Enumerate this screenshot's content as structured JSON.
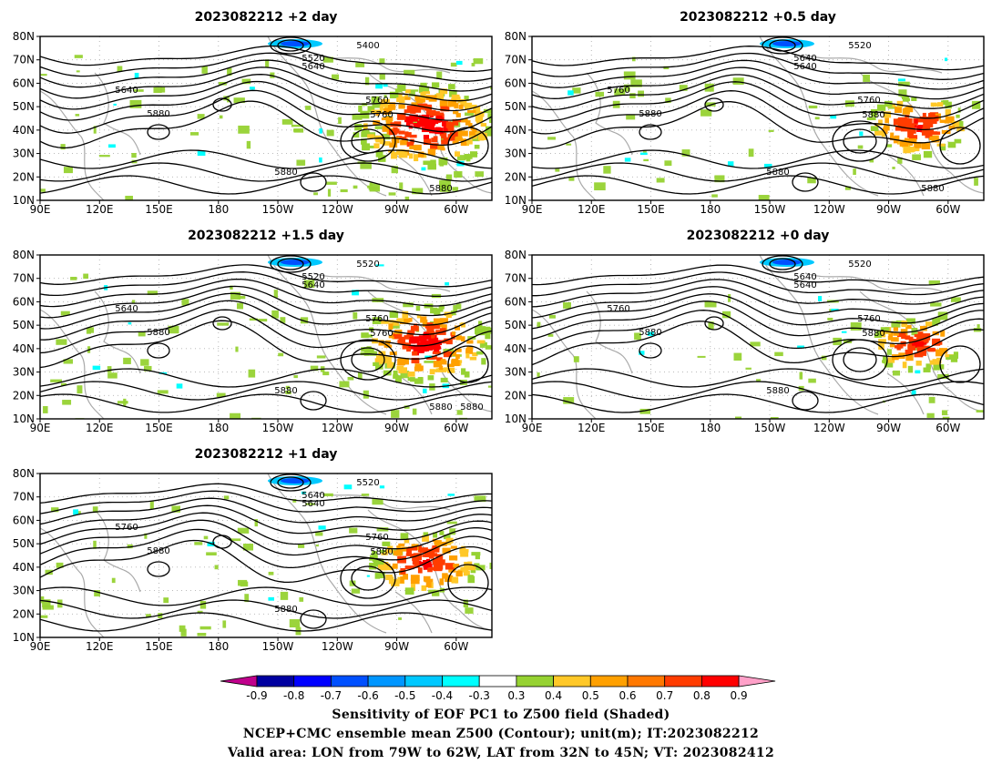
{
  "panels": [
    {
      "id": "p2day",
      "title": "2023082212 +2 day",
      "contour_labels": [
        "5400",
        "5520",
        "5640",
        "5640",
        "5760",
        "5880",
        "5760",
        "5880",
        "5880"
      ],
      "intensity": 1.0
    },
    {
      "id": "p05day",
      "title": "2023082212 +0.5 day",
      "contour_labels": [
        "5520",
        "5640",
        "5640",
        "5760",
        "5760",
        "5880",
        "5880",
        "5880",
        "5880"
      ],
      "intensity": 0.45
    },
    {
      "id": "p15day",
      "title": "2023082212 +1.5 day",
      "contour_labels": [
        "5520",
        "5520",
        "5640",
        "5640",
        "5760",
        "5880",
        "5760",
        "5880",
        "5880",
        "5880"
      ],
      "intensity": 0.85
    },
    {
      "id": "p0day",
      "title": "2023082212 +0 day",
      "contour_labels": [
        "5520",
        "5640",
        "5640",
        "5760",
        "5760",
        "5880",
        "5880",
        "5880"
      ],
      "intensity": 0.35
    },
    {
      "id": "p1day",
      "title": "2023082212 +1 day",
      "contour_labels": [
        "5520",
        "5640",
        "5640",
        "5760",
        "5760",
        "5880",
        "5880",
        "5880"
      ],
      "intensity": 0.55
    }
  ],
  "axes": {
    "lat_labels": [
      "80N",
      "70N",
      "60N",
      "50N",
      "40N",
      "30N",
      "20N",
      "10N"
    ],
    "lon_labels": [
      "90E",
      "120E",
      "150E",
      "180",
      "150W",
      "120W",
      "90W",
      "60W"
    ]
  },
  "colorbar": {
    "labels": [
      "-0.9",
      "-0.8",
      "-0.7",
      "-0.6",
      "-0.5",
      "-0.4",
      "-0.3",
      "0.3",
      "0.4",
      "0.5",
      "0.6",
      "0.7",
      "0.8",
      "0.9"
    ],
    "colors": [
      "#c0008c",
      "#0000a0",
      "#0000ff",
      "#0050ff",
      "#0096ff",
      "#00c8ff",
      "#00ffff",
      "#ffffff",
      "#96d232",
      "#ffc828",
      "#ffa000",
      "#ff7800",
      "#ff3c00",
      "#ff0000",
      "#ffa0c8"
    ]
  },
  "captions": [
    "Sensitivity of EOF PC1 to Z500 field (Shaded)",
    "NCEP+CMC ensemble mean Z500 (Contour); unit(m); IT:2023082212",
    "Valid area: LON from 79W to 62W, LAT from 32N to 45N; VT: 2023082412"
  ]
}
